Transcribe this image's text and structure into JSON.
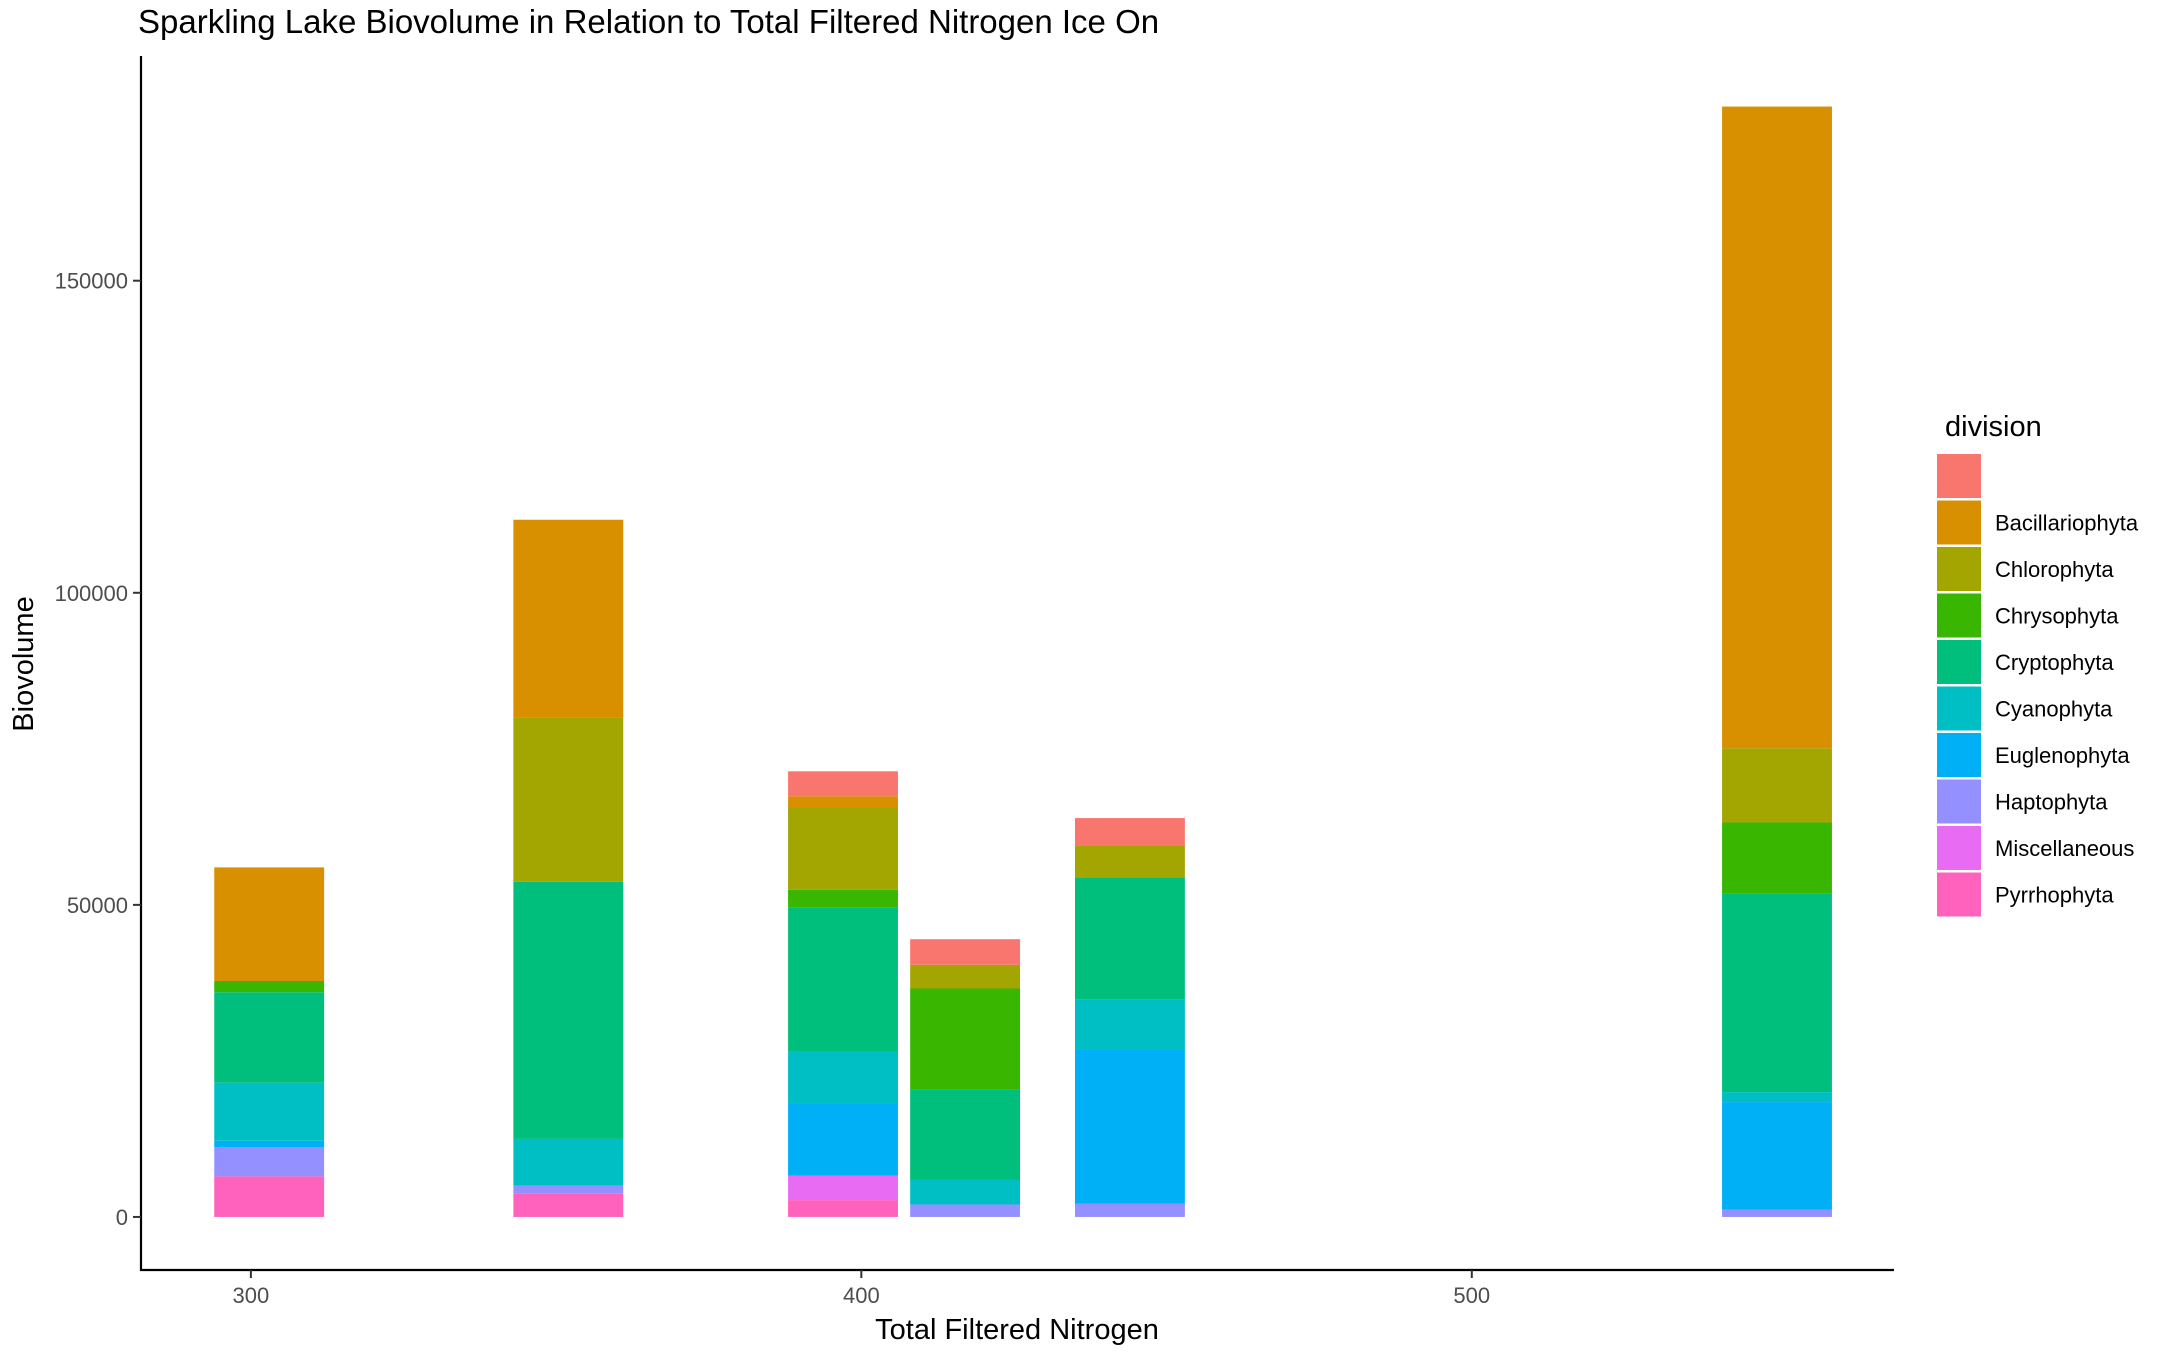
{
  "chart_data": {
    "type": "bar",
    "stacked": true,
    "title": "Sparkling Lake Biovolume in Relation to Total Filtered Nitrogen Ice On",
    "xlabel": "Total Filtered Nitrogen",
    "ylabel": "Biovolume",
    "xlim": [
      282,
      569
    ],
    "ylim": [
      -8500,
      186000
    ],
    "bar_width": 18,
    "x_ticks": [
      {
        "value": 300,
        "label": "300"
      },
      {
        "value": 400,
        "label": "400"
      },
      {
        "value": 500,
        "label": "500"
      }
    ],
    "y_ticks": [
      {
        "value": 0,
        "label": "0"
      },
      {
        "value": 50000,
        "label": "50000"
      },
      {
        "value": 100000,
        "label": "100000"
      },
      {
        "value": 150000,
        "label": "150000"
      }
    ],
    "legend": {
      "title": "division",
      "placement": "right",
      "entries": [
        {
          "key": "blank",
          "label": "",
          "color": "#F8766D"
        },
        {
          "key": "Bacillariophyta",
          "label": "Bacillariophyta",
          "color": "#D89000"
        },
        {
          "key": "Chlorophyta",
          "label": "Chlorophyta",
          "color": "#A3A500"
        },
        {
          "key": "Chrysophyta",
          "label": "Chrysophyta",
          "color": "#39B600"
        },
        {
          "key": "Cryptophyta",
          "label": "Cryptophyta",
          "color": "#00BF7D"
        },
        {
          "key": "Cyanophyta",
          "label": "Cyanophyta",
          "color": "#00BFC4"
        },
        {
          "key": "Euglenophyta",
          "label": "Euglenophyta",
          "color": "#00B0F6"
        },
        {
          "key": "Haptophyta",
          "label": "Haptophyta",
          "color": "#9590FF"
        },
        {
          "key": "Miscellaneous",
          "label": "Miscellaneous",
          "color": "#E76BF3"
        },
        {
          "key": "Pyrrhophyta",
          "label": "Pyrrhophyta",
          "color": "#FF62BC"
        }
      ]
    },
    "bars": [
      {
        "x": 303,
        "segments": [
          {
            "division": "Pyrrhophyta",
            "value": 6500
          },
          {
            "division": "Haptophyta",
            "value": 4700
          },
          {
            "division": "Euglenophyta",
            "value": 1000
          },
          {
            "division": "Cyanophyta",
            "value": 9300
          },
          {
            "division": "Cryptophyta",
            "value": 14500
          },
          {
            "division": "Chrysophyta",
            "value": 1800
          },
          {
            "division": "Bacillariophyta",
            "value": 18200
          }
        ]
      },
      {
        "x": 352,
        "segments": [
          {
            "division": "Pyrrhophyta",
            "value": 3800
          },
          {
            "division": "Haptophyta",
            "value": 1200
          },
          {
            "division": "Cyanophyta",
            "value": 7500
          },
          {
            "division": "Cryptophyta",
            "value": 41200
          },
          {
            "division": "Chlorophyta",
            "value": 26300
          },
          {
            "division": "Bacillariophyta",
            "value": 31700
          }
        ]
      },
      {
        "x": 397,
        "segments": [
          {
            "division": "Pyrrhophyta",
            "value": 2700
          },
          {
            "division": "Miscellaneous",
            "value": 3900
          },
          {
            "division": "Euglenophyta",
            "value": 11500
          },
          {
            "division": "Cyanophyta",
            "value": 8400
          },
          {
            "division": "Cryptophyta",
            "value": 23100
          },
          {
            "division": "Chrysophyta",
            "value": 2800
          },
          {
            "division": "Chlorophyta",
            "value": 13200
          },
          {
            "division": "Bacillariophyta",
            "value": 1800
          },
          {
            "division": "blank",
            "value": 4000
          }
        ]
      },
      {
        "x": 417,
        "segments": [
          {
            "division": "Haptophyta",
            "value": 2000
          },
          {
            "division": "Cyanophyta",
            "value": 4000
          },
          {
            "division": "Cryptophyta",
            "value": 14400
          },
          {
            "division": "Chrysophyta",
            "value": 16200
          },
          {
            "division": "Chlorophyta",
            "value": 3800
          },
          {
            "division": "blank",
            "value": 4100
          }
        ]
      },
      {
        "x": 444,
        "segments": [
          {
            "division": "Haptophyta",
            "value": 2100
          },
          {
            "division": "Euglenophyta",
            "value": 24800
          },
          {
            "division": "Cyanophyta",
            "value": 8000
          },
          {
            "division": "Cryptophyta",
            "value": 19500
          },
          {
            "division": "Chlorophyta",
            "value": 5100
          },
          {
            "division": "blank",
            "value": 4400
          }
        ]
      },
      {
        "x": 550,
        "segments": [
          {
            "division": "Haptophyta",
            "value": 1200
          },
          {
            "division": "Euglenophyta",
            "value": 17200
          },
          {
            "division": "Cyanophyta",
            "value": 1600
          },
          {
            "division": "Cryptophyta",
            "value": 31800
          },
          {
            "division": "Chrysophyta",
            "value": 11400
          },
          {
            "division": "Chlorophyta",
            "value": 11900
          },
          {
            "division": "Bacillariophyta",
            "value": 102800
          }
        ]
      }
    ]
  }
}
